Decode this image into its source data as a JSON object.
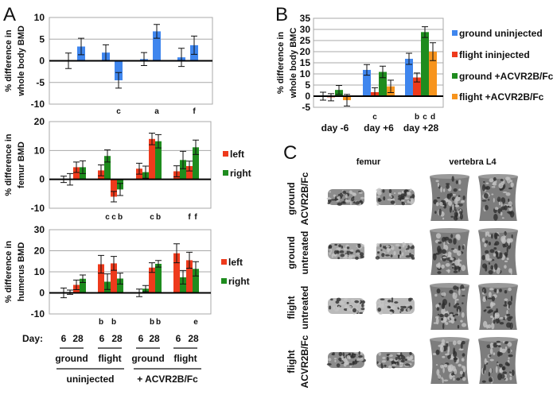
{
  "figure": {
    "panel_labels": [
      "A",
      "B",
      "C"
    ],
    "panel_a": {
      "day_label": "Day:",
      "days": [
        "6",
        "28",
        "6",
        "28",
        "6",
        "28",
        "6",
        "28"
      ],
      "conditions": [
        "ground",
        "flight",
        "ground",
        "flight"
      ],
      "treatments": [
        "uninjected",
        "+ ACVR2B/Fc"
      ]
    },
    "panel_c": {
      "column_headers": [
        "femur",
        "vertebra L4"
      ],
      "row_labels": [
        [
          "ground",
          "ACVR2B/Fc"
        ],
        [
          "ground",
          "untreated"
        ],
        [
          "flight",
          "untreated"
        ],
        [
          "flight",
          "ACVR2B/Fc"
        ]
      ],
      "image_description_type": "micro-CT renderings of trabecular bone"
    }
  },
  "colors": {
    "ground_uninjected": "#3f86ee",
    "flight_uninjected": "#ee3a1c",
    "ground_acvr": "#1e8c1e",
    "flight_acvr": "#f7941d",
    "left": "#ee3a1c",
    "right": "#1e8c1e",
    "whole_body_bmd": "#3f86ee",
    "bone": "#8a8a8a"
  },
  "chart_data": [
    {
      "panel": "A",
      "type": "bar",
      "ylabel": [
        "% difference in",
        "whole body BMD"
      ],
      "ylim": [
        -10,
        10
      ],
      "yticks": [
        "-10",
        "-5",
        "0",
        "5",
        "10"
      ],
      "grid": true,
      "categories": [
        "ground 6",
        "ground 28",
        "flight 6",
        "flight 28",
        "ACVR2B/Fc ground 6",
        "ACVR2B/Fc ground 28",
        "ACVR2B/Fc flight 6",
        "ACVR2B/Fc flight 28"
      ],
      "series": [
        {
          "color": "#3f86ee",
          "values": [
            0,
            3.3,
            1.9,
            -4.5,
            0.4,
            6.8,
            0.8,
            3.6
          ],
          "errors": [
            1.8,
            1.9,
            1.8,
            1.8,
            1.5,
            1.6,
            2.1,
            2.1
          ],
          "letters": [
            "",
            "",
            "",
            "c",
            "",
            "a",
            "",
            "f"
          ]
        }
      ]
    },
    {
      "panel": "A",
      "type": "bar",
      "ylabel": [
        "% difference in",
        "femur BMD"
      ],
      "ylim": [
        -10,
        20
      ],
      "yticks": [
        "-10",
        "0",
        "10",
        "20"
      ],
      "grid": true,
      "legend": "right",
      "categories": [
        "ground 6",
        "ground 28",
        "flight 6",
        "flight 28",
        "ACVR2B/Fc ground 6",
        "ACVR2B/Fc ground 28",
        "ACVR2B/Fc flight 6",
        "ACVR2B/Fc flight 28"
      ],
      "series": [
        {
          "name": "left",
          "color": "#ee3a1c",
          "values": [
            0,
            4.2,
            3.1,
            -6,
            3.7,
            14,
            2.8,
            4.6
          ],
          "errors": [
            1.1,
            1.8,
            1.9,
            1.8,
            1.9,
            2.0,
            1.9,
            1.7
          ],
          "letters": [
            "",
            "",
            "",
            "c",
            "",
            "c",
            "",
            "f"
          ]
        },
        {
          "name": "right",
          "color": "#1e8c1e",
          "values": [
            0,
            4.2,
            8.1,
            -3.5,
            2.5,
            13.2,
            6.7,
            11.1
          ],
          "errors": [
            2.0,
            2.2,
            2.1,
            2.1,
            2.1,
            2.3,
            3.0,
            2.5
          ],
          "letters": [
            "",
            "",
            "c",
            "b",
            "",
            "b",
            "",
            "f"
          ]
        }
      ]
    },
    {
      "panel": "A",
      "type": "bar",
      "ylabel": [
        "% difference in",
        "humerus BMD"
      ],
      "ylim": [
        -10,
        30
      ],
      "yticks": [
        "-10",
        "0",
        "10",
        "20",
        "30"
      ],
      "grid": true,
      "legend": "right",
      "categories": [
        "ground 6",
        "ground 28",
        "flight 6",
        "flight 28",
        "ACVR2B/Fc ground 6",
        "ACVR2B/Fc ground 28",
        "ACVR2B/Fc flight 6",
        "ACVR2B/Fc flight 28"
      ],
      "series": [
        {
          "name": "left",
          "color": "#ee3a1c",
          "values": [
            0,
            3.8,
            13.6,
            14,
            0,
            12,
            18.8,
            15.5
          ],
          "errors": [
            2.3,
            2.3,
            4.2,
            3.3,
            1.8,
            2.3,
            4.5,
            3.8
          ],
          "letters": [
            "",
            "",
            "b",
            "b",
            "",
            "b",
            "",
            ""
          ]
        },
        {
          "name": "right",
          "color": "#1e8c1e",
          "values": [
            0.3,
            6.7,
            5.3,
            6.8,
            2,
            13.8,
            7.4,
            11.4
          ],
          "errors": [
            1.0,
            1.8,
            3.7,
            2.6,
            1.5,
            1.6,
            3.2,
            3.4
          ],
          "letters": [
            "",
            "",
            "",
            "",
            "",
            "b",
            "",
            "e"
          ]
        }
      ]
    },
    {
      "panel": "B",
      "type": "bar",
      "ylabel": [
        "% difference in",
        "whole body BMC"
      ],
      "ylim": [
        -5,
        35
      ],
      "yticks": [
        "-5",
        "0",
        "5",
        "10",
        "15",
        "20",
        "25",
        "30",
        "35"
      ],
      "grid": true,
      "legend": "right",
      "categories": [
        "day -6",
        "day +6",
        "day +28"
      ],
      "series": [
        {
          "name": "ground uninjected",
          "color": "#3f86ee",
          "values": [
            0,
            11.8,
            16.8
          ],
          "errors": [
            1.8,
            2.4,
            2.5
          ],
          "letters": [
            "",
            "",
            ""
          ]
        },
        {
          "name": "flight ininjected",
          "color": "#ee3a1c",
          "values": [
            -0.5,
            1.8,
            8.4
          ],
          "errors": [
            1.6,
            2.0,
            2.0
          ],
          "letters": [
            "",
            "c",
            "b"
          ]
        },
        {
          "name": "ground +ACVR2B/Fc",
          "color": "#1e8c1e",
          "values": [
            2.8,
            10.9,
            28.8
          ],
          "errors": [
            2.0,
            2.6,
            2.4
          ],
          "letters": [
            "",
            "",
            "c"
          ]
        },
        {
          "name": "flight +ACVR2B/Fc",
          "color": "#f7941d",
          "values": [
            -1.8,
            4.4,
            20
          ],
          "errors": [
            2.6,
            2.8,
            4.0
          ],
          "letters": [
            "",
            "",
            "d"
          ]
        }
      ]
    }
  ]
}
